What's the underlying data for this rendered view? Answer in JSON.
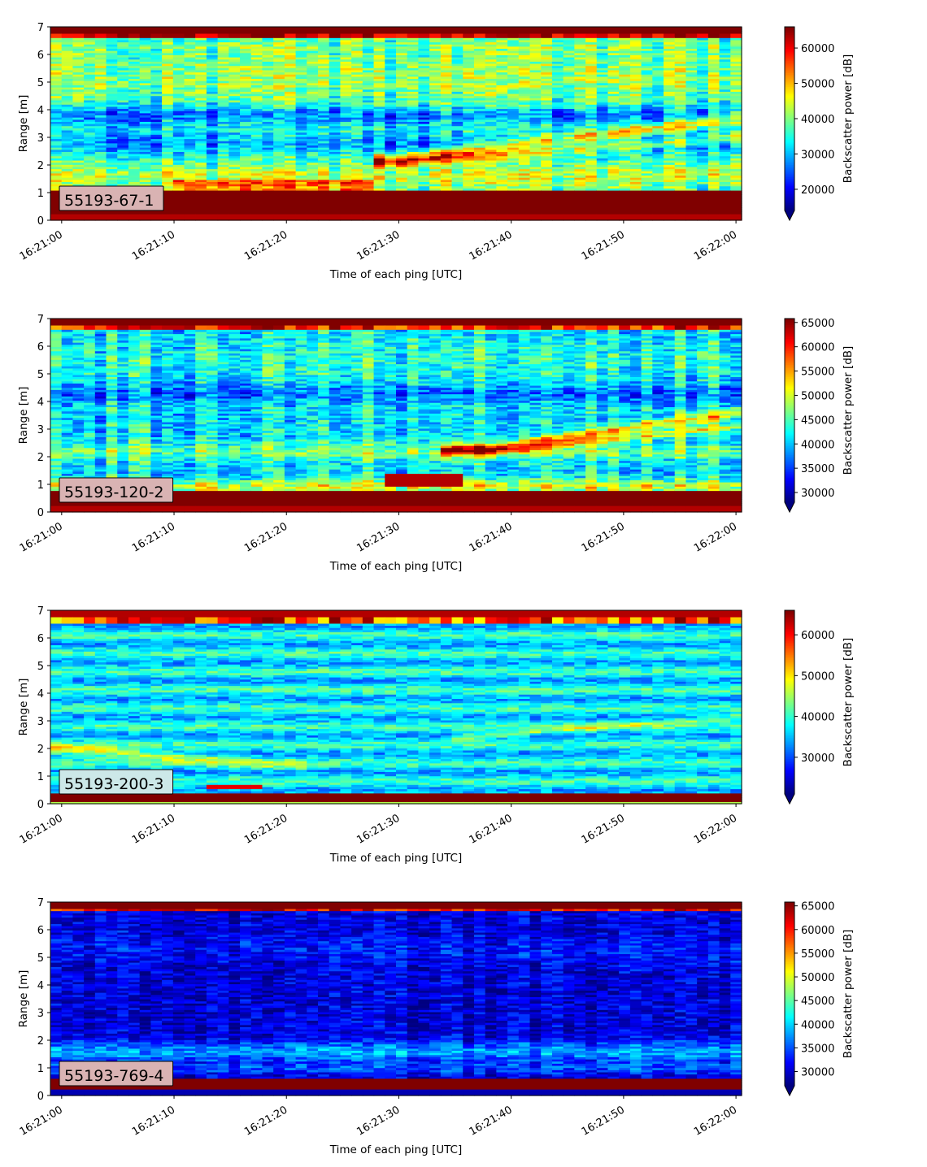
{
  "figure": {
    "colormap": "jet",
    "under_color": "#00007f",
    "over_color": "#7f0000"
  },
  "chart_data": [
    {
      "type": "heatmap",
      "label": "55193-67-1",
      "label_bg": "#d9b3b3",
      "xlabel": "Time of each ping [UTC]",
      "ylabel": "Range [m]",
      "x_ticks": [
        "16:21:00",
        "16:21:10",
        "16:21:20",
        "16:21:30",
        "16:21:40",
        "16:21:50",
        "16:22:00"
      ],
      "y_ticks": [
        0,
        1,
        2,
        3,
        4,
        5,
        6,
        7
      ],
      "xlim_seconds_after_16_21_00": [
        -1,
        60.5
      ],
      "ylim": [
        0,
        7
      ],
      "colorbar_label": "Backscatter power [dB]",
      "colorbar_range": [
        14000,
        66000
      ],
      "colorbar_ticks": [
        20000,
        30000,
        40000,
        50000,
        60000
      ],
      "colorbar_extend": "min",
      "features": {
        "surface_band": [
          6.6,
          7.0
        ],
        "bottom_band": [
          0.2,
          1.1
        ],
        "mid_band_center": 1.6,
        "rising_band": {
          "start_time": "16:21:30",
          "start_range": 2.2,
          "end_time": "16:22:00",
          "end_range": 3.7
        }
      }
    },
    {
      "type": "heatmap",
      "label": "55193-120-2",
      "label_bg": "#d9b3b3",
      "xlabel": "Time of each ping [UTC]",
      "ylabel": "Range [m]",
      "x_ticks": [
        "16:21:00",
        "16:21:10",
        "16:21:20",
        "16:21:30",
        "16:21:40",
        "16:21:50",
        "16:22:00"
      ],
      "y_ticks": [
        0,
        1,
        2,
        3,
        4,
        5,
        6,
        7
      ],
      "xlim_seconds_after_16_21_00": [
        -1,
        60.5
      ],
      "ylim": [
        0,
        7
      ],
      "colorbar_label": "Backscatter power [dB]",
      "colorbar_range": [
        28000,
        65800
      ],
      "colorbar_ticks": [
        30000,
        35000,
        40000,
        45000,
        50000,
        55000,
        60000,
        65000
      ],
      "colorbar_extend": "min",
      "features": {
        "surface_band": [
          6.6,
          7.0
        ],
        "bottom_band": [
          0.2,
          0.8
        ],
        "hot_patch": {
          "time_start": "16:21:29",
          "time_end": "16:21:36",
          "range": [
            0.9,
            1.4
          ]
        },
        "rising_band": {
          "start_time": "16:21:38",
          "start_range": 2.3,
          "end_time": "16:22:00",
          "end_range": 3.6
        }
      }
    },
    {
      "type": "heatmap",
      "label": "55193-200-3",
      "label_bg": "#cce8e8",
      "xlabel": "Time of each ping [UTC]",
      "ylabel": "Range [m]",
      "x_ticks": [
        "16:21:00",
        "16:21:10",
        "16:21:20",
        "16:21:30",
        "16:21:40",
        "16:21:50",
        "16:22:00"
      ],
      "y_ticks": [
        0,
        1,
        2,
        3,
        4,
        5,
        6,
        7
      ],
      "xlim_seconds_after_16_21_00": [
        -1,
        60.5
      ],
      "ylim": [
        0,
        7
      ],
      "colorbar_label": "Backscatter power [dB]",
      "colorbar_range": [
        21000,
        66000
      ],
      "colorbar_ticks": [
        30000,
        40000,
        50000,
        60000
      ],
      "colorbar_extend": "min",
      "features": {
        "surface_band": [
          6.5,
          7.0
        ],
        "bottom_band": [
          0.1,
          0.4
        ],
        "descending_band": {
          "start_range": 2.0,
          "end_time": "16:21:20",
          "end_range": 1.4
        },
        "hot_patch": {
          "time_start": "16:21:13",
          "time_end": "16:21:18",
          "range": [
            0.55,
            0.7
          ]
        }
      }
    },
    {
      "type": "heatmap",
      "label": "55193-769-4",
      "label_bg": "#d9b3b3",
      "xlabel": "Time of each ping [UTC]",
      "ylabel": "Range [m]",
      "x_ticks": [
        "16:21:00",
        "16:21:10",
        "16:21:20",
        "16:21:30",
        "16:21:40",
        "16:21:50",
        "16:22:00"
      ],
      "y_ticks": [
        0,
        1,
        2,
        3,
        4,
        5,
        6,
        7
      ],
      "xlim_seconds_after_16_21_00": [
        -1,
        60.5
      ],
      "ylim": [
        0,
        7
      ],
      "colorbar_label": "Backscatter power [dB]",
      "colorbar_range": [
        27000,
        65800
      ],
      "colorbar_ticks": [
        30000,
        35000,
        40000,
        45000,
        50000,
        55000,
        60000,
        65000
      ],
      "colorbar_extend": "min",
      "features": {
        "surface_band": [
          6.7,
          7.0
        ],
        "bottom_band": [
          0.2,
          0.6
        ],
        "low_band_center": 1.6
      }
    }
  ]
}
